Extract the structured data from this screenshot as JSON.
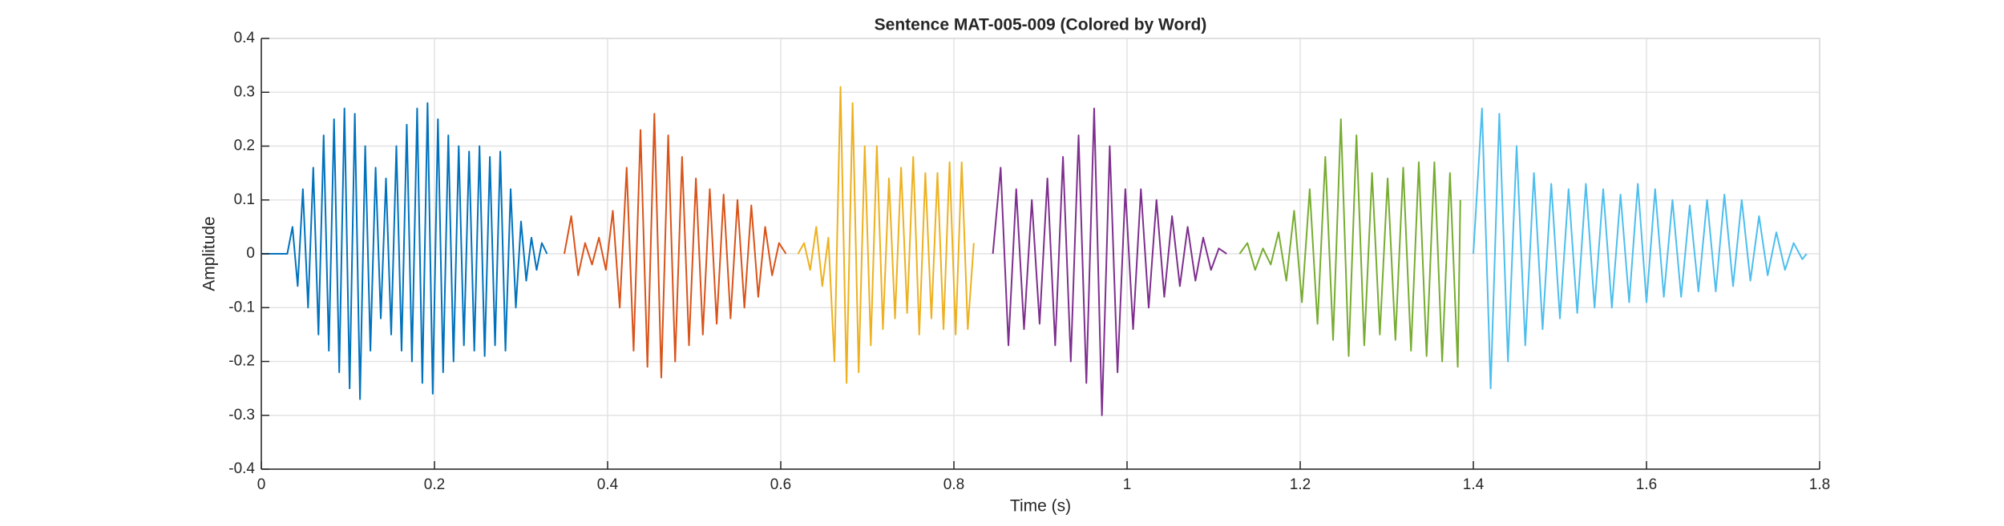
{
  "chart_data": {
    "type": "line",
    "title": "Sentence MAT-005-009 (Colored by Word)",
    "x_label": "Time (s)",
    "y_label": "Amplitude",
    "xlim": [
      0,
      1.8
    ],
    "ylim": [
      -0.4,
      0.4
    ],
    "xticks": [
      0,
      0.2,
      0.4,
      0.6,
      0.8,
      1,
      1.2,
      1.4,
      1.6,
      1.8
    ],
    "yticks": [
      -0.4,
      -0.3,
      -0.2,
      -0.1,
      0,
      0.1,
      0.2,
      0.3,
      0.4
    ],
    "grid": true,
    "series": [
      {
        "color": "#0072bd",
        "x": [
          0,
          0.03,
          0.036,
          0.042,
          0.048,
          0.054,
          0.06,
          0.066,
          0.072,
          0.078,
          0.084,
          0.09,
          0.096,
          0.102,
          0.108,
          0.114,
          0.12,
          0.126,
          0.132,
          0.138,
          0.144,
          0.15,
          0.156,
          0.162,
          0.168,
          0.174,
          0.18,
          0.186,
          0.192,
          0.198,
          0.204,
          0.21,
          0.216,
          0.222,
          0.228,
          0.234,
          0.24,
          0.246,
          0.252,
          0.258,
          0.264,
          0.27,
          0.276,
          0.282,
          0.288,
          0.294,
          0.3,
          0.306,
          0.312,
          0.318,
          0.324,
          0.33
        ],
        "values": [
          0,
          0,
          0.05,
          -0.06,
          0.12,
          -0.1,
          0.16,
          -0.15,
          0.22,
          -0.18,
          0.25,
          -0.22,
          0.27,
          -0.25,
          0.26,
          -0.27,
          0.2,
          -0.18,
          0.16,
          -0.12,
          0.14,
          -0.15,
          0.2,
          -0.18,
          0.24,
          -0.2,
          0.27,
          -0.24,
          0.28,
          -0.26,
          0.25,
          -0.22,
          0.22,
          -0.2,
          0.2,
          -0.17,
          0.19,
          -0.18,
          0.2,
          -0.19,
          0.18,
          -0.17,
          0.19,
          -0.18,
          0.12,
          -0.1,
          0.06,
          -0.05,
          0.03,
          -0.03,
          0.02,
          0
        ]
      },
      {
        "color": "#d95319",
        "x": [
          0.35,
          0.358,
          0.366,
          0.374,
          0.382,
          0.39,
          0.398,
          0.406,
          0.414,
          0.422,
          0.43,
          0.438,
          0.446,
          0.454,
          0.462,
          0.47,
          0.478,
          0.486,
          0.494,
          0.502,
          0.51,
          0.518,
          0.526,
          0.534,
          0.542,
          0.55,
          0.558,
          0.566,
          0.574,
          0.582,
          0.59,
          0.598,
          0.606
        ],
        "values": [
          0,
          0.07,
          -0.04,
          0.02,
          -0.02,
          0.03,
          -0.03,
          0.08,
          -0.1,
          0.16,
          -0.18,
          0.23,
          -0.21,
          0.26,
          -0.23,
          0.22,
          -0.2,
          0.18,
          -0.17,
          0.14,
          -0.15,
          0.12,
          -0.13,
          0.11,
          -0.12,
          0.1,
          -0.1,
          0.09,
          -0.08,
          0.05,
          -0.04,
          0.02,
          0
        ]
      },
      {
        "color": "#edb120",
        "x": [
          0.62,
          0.627,
          0.634,
          0.641,
          0.648,
          0.655,
          0.662,
          0.669,
          0.676,
          0.683,
          0.69,
          0.697,
          0.704,
          0.711,
          0.718,
          0.725,
          0.732,
          0.739,
          0.746,
          0.753,
          0.76,
          0.767,
          0.774,
          0.781,
          0.788,
          0.795,
          0.802,
          0.809,
          0.816,
          0.823
        ],
        "values": [
          0,
          0.02,
          -0.03,
          0.05,
          -0.06,
          0.03,
          -0.2,
          0.31,
          -0.24,
          0.28,
          -0.22,
          0.2,
          -0.17,
          0.2,
          -0.14,
          0.14,
          -0.12,
          0.16,
          -0.11,
          0.18,
          -0.15,
          0.15,
          -0.12,
          0.15,
          -0.14,
          0.17,
          -0.15,
          0.17,
          -0.14,
          0.02
        ]
      },
      {
        "color": "#7e2f8e",
        "x": [
          0.845,
          0.854,
          0.863,
          0.872,
          0.881,
          0.89,
          0.899,
          0.908,
          0.917,
          0.926,
          0.935,
          0.944,
          0.953,
          0.962,
          0.971,
          0.98,
          0.989,
          0.998,
          1.007,
          1.016,
          1.025,
          1.034,
          1.043,
          1.052,
          1.061,
          1.07,
          1.079,
          1.088,
          1.097,
          1.106,
          1.115
        ],
        "values": [
          0,
          0.16,
          -0.17,
          0.12,
          -0.14,
          0.1,
          -0.13,
          0.14,
          -0.17,
          0.18,
          -0.2,
          0.22,
          -0.24,
          0.27,
          -0.3,
          0.2,
          -0.22,
          0.12,
          -0.14,
          0.12,
          -0.1,
          0.1,
          -0.08,
          0.07,
          -0.06,
          0.05,
          -0.05,
          0.03,
          -0.03,
          0.01,
          0
        ]
      },
      {
        "color": "#77ac30",
        "x": [
          1.13,
          1.139,
          1.148,
          1.157,
          1.166,
          1.175,
          1.184,
          1.193,
          1.202,
          1.211,
          1.22,
          1.229,
          1.238,
          1.247,
          1.256,
          1.265,
          1.274,
          1.283,
          1.292,
          1.301,
          1.31,
          1.319,
          1.328,
          1.337,
          1.346,
          1.355,
          1.364,
          1.373,
          1.382,
          1.385
        ],
        "values": [
          0,
          0.02,
          -0.03,
          0.01,
          -0.02,
          0.04,
          -0.05,
          0.08,
          -0.09,
          0.12,
          -0.13,
          0.18,
          -0.16,
          0.25,
          -0.19,
          0.22,
          -0.17,
          0.15,
          -0.15,
          0.14,
          -0.16,
          0.16,
          -0.18,
          0.17,
          -0.19,
          0.17,
          -0.2,
          0.15,
          -0.21,
          0.1
        ]
      },
      {
        "color": "#4dbeee",
        "x": [
          1.4,
          1.41,
          1.42,
          1.43,
          1.44,
          1.45,
          1.46,
          1.47,
          1.48,
          1.49,
          1.5,
          1.51,
          1.52,
          1.53,
          1.54,
          1.55,
          1.56,
          1.57,
          1.58,
          1.59,
          1.6,
          1.61,
          1.62,
          1.63,
          1.64,
          1.65,
          1.66,
          1.67,
          1.68,
          1.69,
          1.7,
          1.71,
          1.72,
          1.73,
          1.74,
          1.75,
          1.76,
          1.77,
          1.78,
          1.785
        ],
        "values": [
          0,
          0.27,
          -0.25,
          0.26,
          -0.2,
          0.2,
          -0.17,
          0.15,
          -0.14,
          0.13,
          -0.12,
          0.12,
          -0.11,
          0.13,
          -0.1,
          0.12,
          -0.1,
          0.11,
          -0.09,
          0.13,
          -0.09,
          0.12,
          -0.08,
          0.1,
          -0.08,
          0.09,
          -0.07,
          0.1,
          -0.07,
          0.11,
          -0.06,
          0.1,
          -0.05,
          0.07,
          -0.04,
          0.04,
          -0.03,
          0.02,
          -0.01,
          0
        ]
      }
    ]
  }
}
